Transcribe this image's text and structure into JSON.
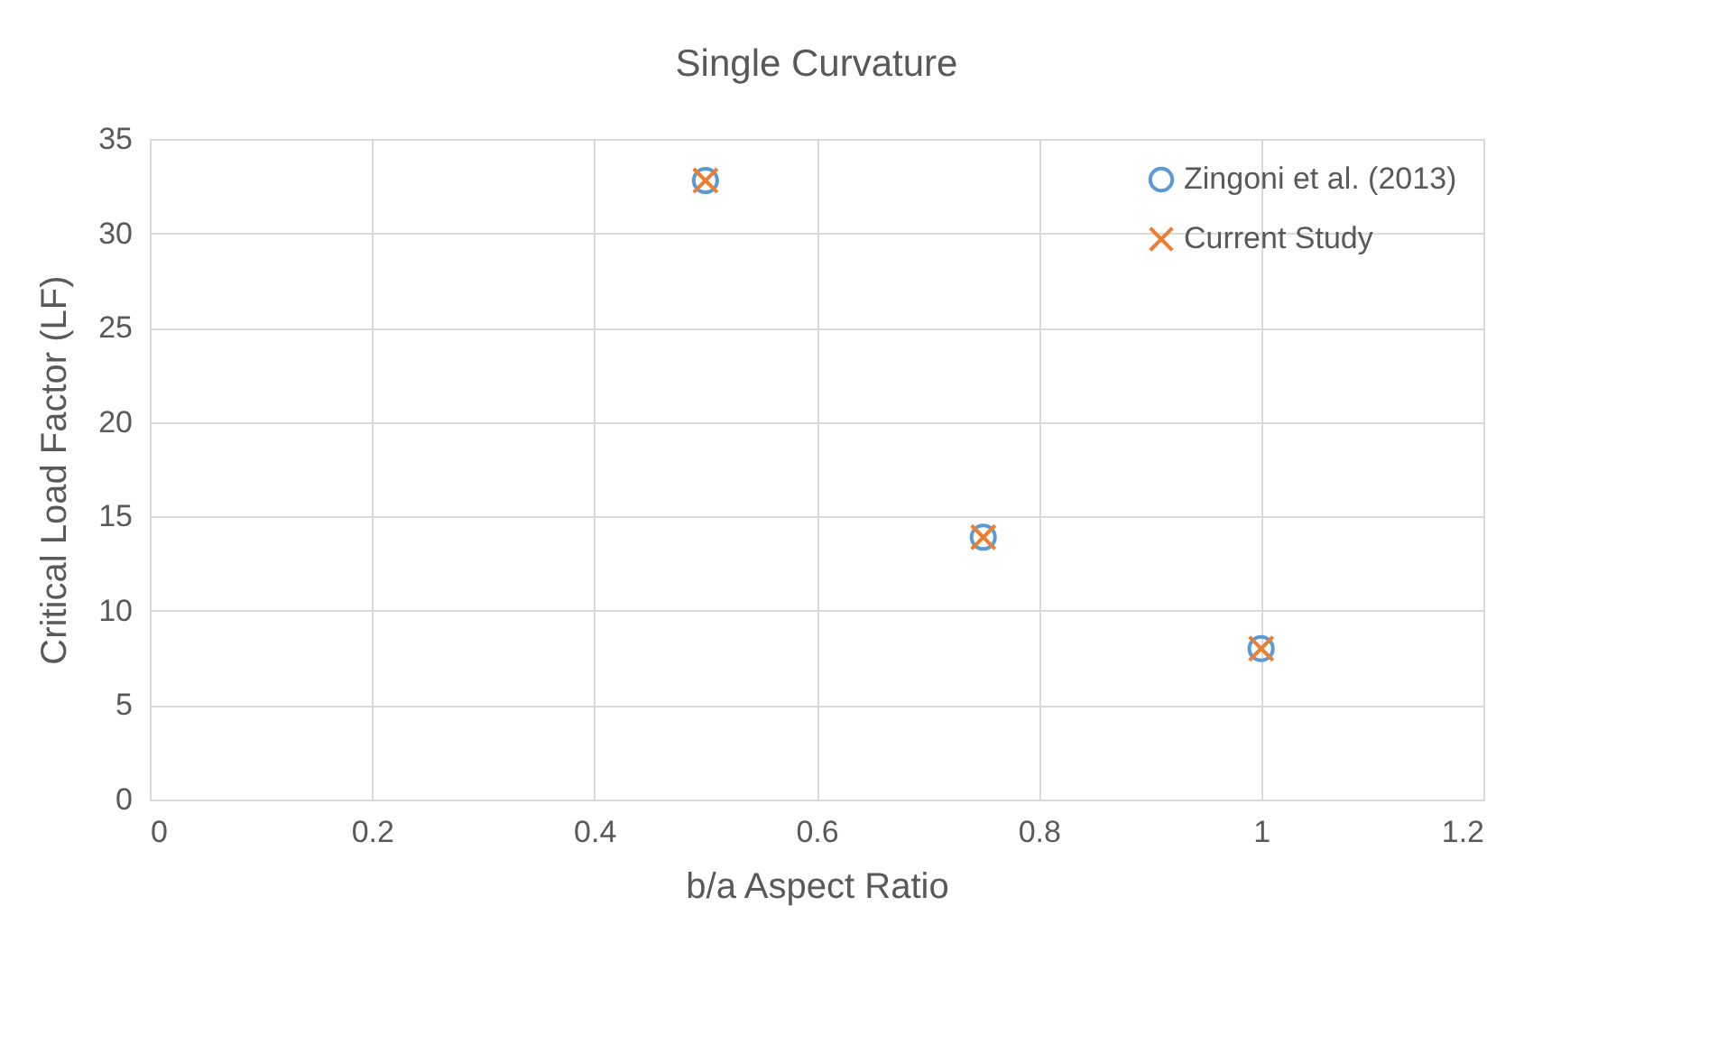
{
  "chart_data": {
    "type": "scatter",
    "title": "Single Curvature",
    "xlabel": "b/a Aspect Ratio",
    "ylabel": "Critical Load Factor (LF)",
    "x": [
      0.5,
      0.75,
      1
    ],
    "series": [
      {
        "name": "Zingoni et al. (2013)",
        "color": "#5b9bd5",
        "marker": "circle",
        "values": [
          32.8,
          13.9,
          8.0
        ]
      },
      {
        "name": "Current Study",
        "color": "#ed7d31",
        "marker": "cross",
        "values": [
          32.8,
          13.9,
          8.0
        ]
      }
    ],
    "xlim": [
      0,
      1.2
    ],
    "xticks": [
      0,
      0.2,
      0.4,
      0.6,
      0.8,
      1,
      1.2
    ],
    "ylim": [
      0,
      35
    ],
    "yticks": [
      0,
      5,
      10,
      15,
      20,
      25,
      30,
      35
    ],
    "grid": true,
    "legend": "top right"
  }
}
